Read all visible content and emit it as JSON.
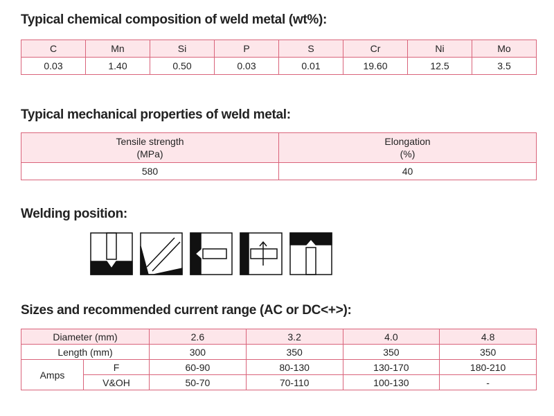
{
  "composition": {
    "title": "Typical chemical composition of weld metal (wt%):",
    "headers": [
      "C",
      "Mn",
      "Si",
      "P",
      "S",
      "Cr",
      "Ni",
      "Mo"
    ],
    "values": [
      "0.03",
      "1.40",
      "0.50",
      "0.03",
      "0.01",
      "19.60",
      "12.5",
      "3.5"
    ]
  },
  "mechanical": {
    "title": "Typical mechanical properties of weld metal:",
    "headers": [
      [
        "Tensile strength",
        "(MPa)"
      ],
      [
        "Elongation",
        "(%)"
      ]
    ],
    "values": [
      "580",
      "40"
    ]
  },
  "welding_position": {
    "title": "Welding position:"
  },
  "sizes": {
    "title": "Sizes and recommended current range (AC or DC<+>):",
    "diameter_label": "Diameter (mm)",
    "diameters": [
      "2.6",
      "3.2",
      "4.0",
      "4.8"
    ],
    "length_label": "Length (mm)",
    "lengths": [
      "300",
      "350",
      "350",
      "350"
    ],
    "amps_label": "Amps",
    "amps_rows": [
      {
        "label": "F",
        "values": [
          "60-90",
          "80-130",
          "130-170",
          "180-210"
        ]
      },
      {
        "label": "V&OH",
        "values": [
          "50-70",
          "70-110",
          "100-130",
          "-"
        ]
      }
    ]
  }
}
